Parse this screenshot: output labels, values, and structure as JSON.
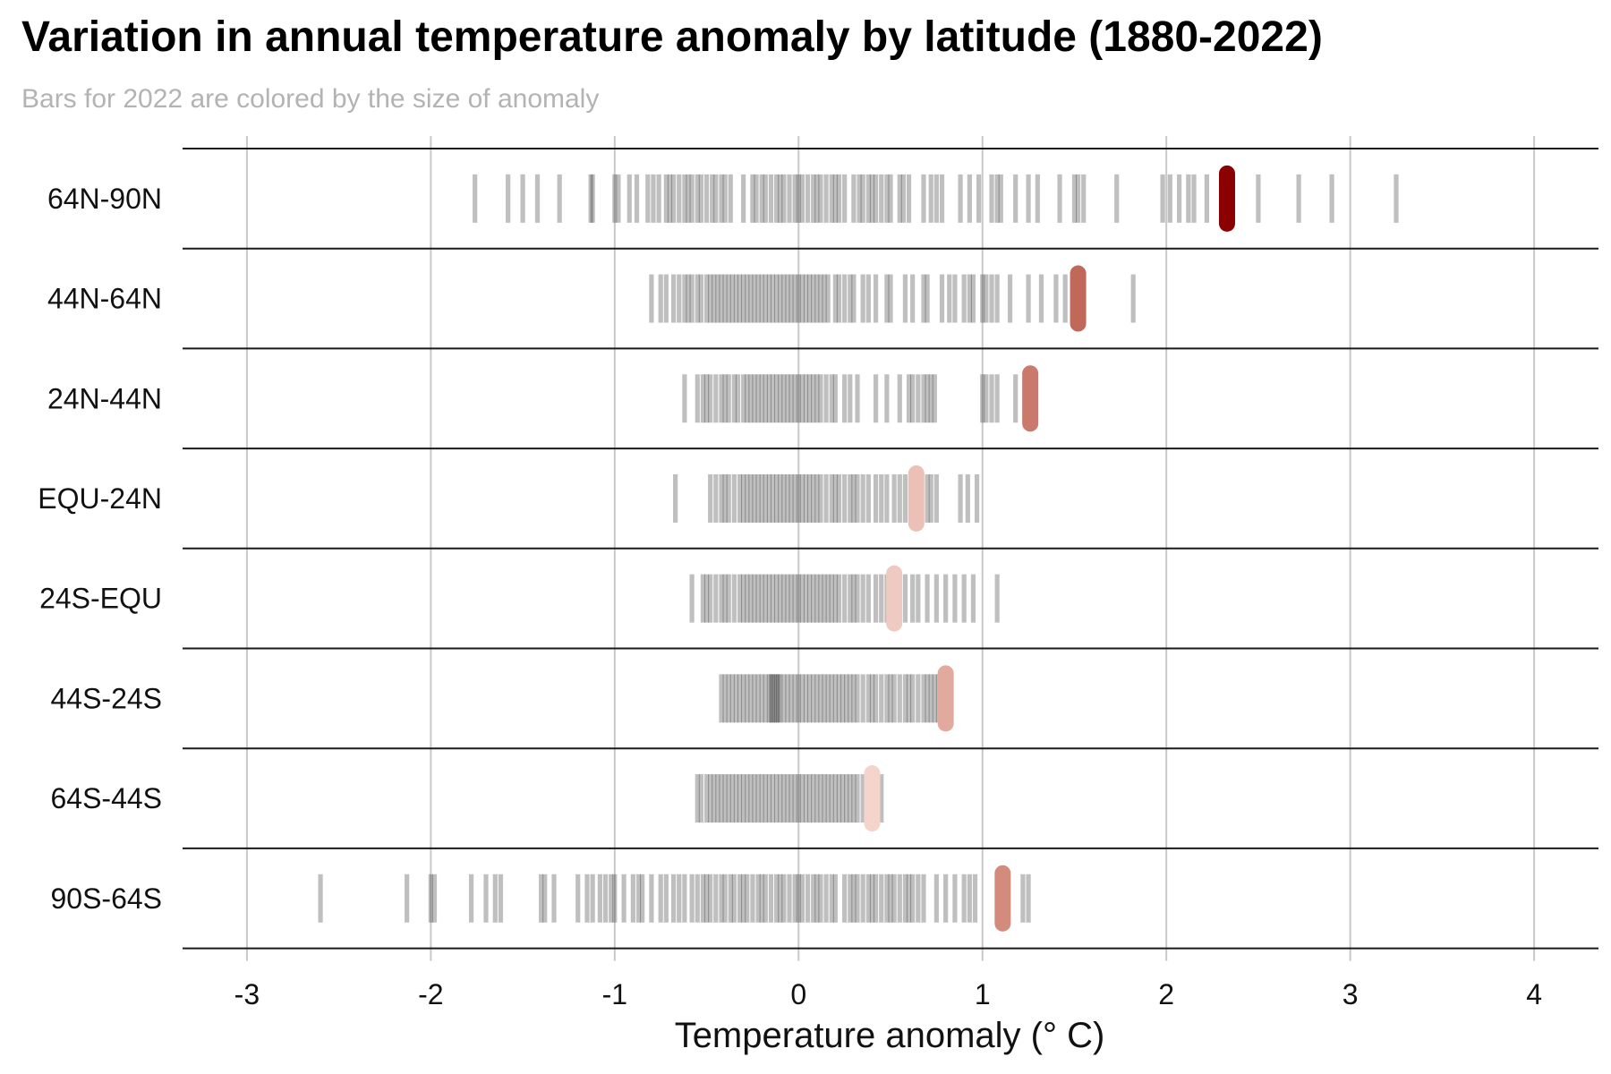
{
  "chart_data": {
    "type": "strip",
    "title": "Variation in annual temperature anomaly by latitude (1880-2022)",
    "subtitle": "Bars for 2022 are colored by the size of anomaly",
    "xlabel": "Temperature anomaly (° C)",
    "xlim": [
      -3.35,
      4.35
    ],
    "x_ticks": [
      -3,
      -2,
      -1,
      0,
      1,
      2,
      3,
      4
    ],
    "grid": "vertical",
    "categories": [
      "64N-90N",
      "44N-64N",
      "24N-44N",
      "EQU-24N",
      "24S-EQU",
      "44S-24S",
      "64S-44S",
      "90S-64S"
    ],
    "bar_colors": {
      "history": "#000000",
      "history_opacity": 0.25,
      "anomaly_high": "#8b0000",
      "anomaly_low": "#f5d4cc"
    },
    "series": [
      {
        "latitude": "64N-90N",
        "highlight_2022": 2.33,
        "highlight_color": "#8b0000",
        "values": [
          -1.76,
          -1.58,
          -1.5,
          -1.42,
          -1.3,
          -1.13,
          -1.12,
          -1.0,
          -0.98,
          -0.92,
          -0.88,
          -0.82,
          -0.79,
          -0.76,
          -0.72,
          -0.7,
          -0.68,
          -0.65,
          -0.62,
          -0.6,
          -0.58,
          -0.55,
          -0.53,
          -0.5,
          -0.47,
          -0.45,
          -0.42,
          -0.4,
          -0.37,
          -0.3,
          -0.25,
          -0.23,
          -0.2,
          -0.18,
          -0.15,
          -0.12,
          -0.1,
          -0.08,
          -0.05,
          -0.02,
          0.0,
          0.02,
          0.05,
          0.08,
          0.1,
          0.12,
          0.15,
          0.18,
          0.2,
          0.22,
          0.25,
          0.3,
          0.33,
          0.35,
          0.38,
          0.4,
          0.42,
          0.45,
          0.48,
          0.5,
          0.55,
          0.57,
          0.6,
          0.68,
          0.72,
          0.75,
          0.78,
          0.88,
          0.93,
          0.98,
          1.05,
          1.08,
          1.1,
          1.18,
          1.25,
          1.3,
          1.42,
          1.5,
          1.52,
          1.55,
          1.73,
          1.98,
          2.02,
          2.07,
          2.12,
          2.15,
          2.22,
          2.5,
          2.72,
          2.9,
          3.25
        ]
      },
      {
        "latitude": "44N-64N",
        "highlight_2022": 1.52,
        "highlight_color": "#c0685a",
        "values": [
          -0.8,
          -0.75,
          -0.72,
          -0.68,
          -0.65,
          -0.62,
          -0.6,
          -0.58,
          -0.55,
          -0.53,
          -0.5,
          -0.48,
          -0.46,
          -0.44,
          -0.42,
          -0.4,
          -0.38,
          -0.36,
          -0.34,
          -0.32,
          -0.3,
          -0.28,
          -0.26,
          -0.24,
          -0.22,
          -0.2,
          -0.18,
          -0.16,
          -0.14,
          -0.12,
          -0.1,
          -0.08,
          -0.06,
          -0.04,
          -0.02,
          0.0,
          0.02,
          0.04,
          0.06,
          0.08,
          0.1,
          0.12,
          0.14,
          0.16,
          0.2,
          0.22,
          0.25,
          0.28,
          0.3,
          0.35,
          0.38,
          0.42,
          0.48,
          0.5,
          0.58,
          0.62,
          0.68,
          0.7,
          0.78,
          0.82,
          0.85,
          0.9,
          0.93,
          0.95,
          1.0,
          1.02,
          1.05,
          1.08,
          1.15,
          1.25,
          1.32,
          1.4,
          1.45,
          1.82
        ]
      },
      {
        "latitude": "24N-44N",
        "highlight_2022": 1.26,
        "highlight_color": "#c97a6d",
        "values": [
          -0.62,
          -0.55,
          -0.52,
          -0.5,
          -0.48,
          -0.45,
          -0.42,
          -0.4,
          -0.38,
          -0.35,
          -0.33,
          -0.3,
          -0.28,
          -0.26,
          -0.24,
          -0.22,
          -0.2,
          -0.18,
          -0.16,
          -0.14,
          -0.12,
          -0.1,
          -0.08,
          -0.06,
          -0.04,
          -0.02,
          0.0,
          0.02,
          0.04,
          0.06,
          0.08,
          0.1,
          0.12,
          0.15,
          0.18,
          0.2,
          0.25,
          0.28,
          0.32,
          0.42,
          0.48,
          0.55,
          0.6,
          0.62,
          0.65,
          0.68,
          0.7,
          0.72,
          0.74,
          1.0,
          1.02,
          1.05,
          1.08,
          1.18
        ]
      },
      {
        "latitude": "EQU-24N",
        "highlight_2022": 0.64,
        "highlight_color": "#ecc0b6",
        "values": [
          -0.67,
          -0.48,
          -0.45,
          -0.42,
          -0.4,
          -0.38,
          -0.35,
          -0.32,
          -0.3,
          -0.28,
          -0.26,
          -0.24,
          -0.22,
          -0.2,
          -0.18,
          -0.16,
          -0.14,
          -0.12,
          -0.1,
          -0.08,
          -0.06,
          -0.04,
          -0.02,
          0.0,
          0.02,
          0.04,
          0.06,
          0.08,
          0.1,
          0.12,
          0.15,
          0.18,
          0.2,
          0.22,
          0.25,
          0.28,
          0.3,
          0.32,
          0.35,
          0.38,
          0.42,
          0.45,
          0.48,
          0.52,
          0.55,
          0.58,
          0.7,
          0.72,
          0.75,
          0.88,
          0.92,
          0.97
        ]
      },
      {
        "latitude": "24S-EQU",
        "highlight_2022": 0.52,
        "highlight_color": "#efcac2",
        "values": [
          -0.58,
          -0.52,
          -0.5,
          -0.48,
          -0.45,
          -0.42,
          -0.4,
          -0.38,
          -0.35,
          -0.32,
          -0.3,
          -0.28,
          -0.26,
          -0.24,
          -0.22,
          -0.2,
          -0.18,
          -0.16,
          -0.14,
          -0.12,
          -0.1,
          -0.08,
          -0.06,
          -0.04,
          -0.02,
          0.0,
          0.02,
          0.04,
          0.06,
          0.08,
          0.1,
          0.12,
          0.14,
          0.16,
          0.18,
          0.2,
          0.22,
          0.25,
          0.28,
          0.3,
          0.32,
          0.35,
          0.38,
          0.42,
          0.45,
          0.48,
          0.55,
          0.58,
          0.62,
          0.65,
          0.7,
          0.75,
          0.8,
          0.85,
          0.9,
          0.95,
          1.08
        ]
      },
      {
        "latitude": "44S-24S",
        "highlight_2022": 0.8,
        "highlight_color": "#e2aa9e",
        "values": [
          -0.42,
          -0.4,
          -0.38,
          -0.36,
          -0.34,
          -0.32,
          -0.3,
          -0.28,
          -0.26,
          -0.24,
          -0.22,
          -0.2,
          -0.18,
          -0.16,
          -0.15,
          -0.14,
          -0.13,
          -0.12,
          -0.11,
          -0.1,
          -0.08,
          -0.06,
          -0.04,
          -0.02,
          0.0,
          0.02,
          0.04,
          0.06,
          0.08,
          0.1,
          0.12,
          0.14,
          0.16,
          0.18,
          0.2,
          0.22,
          0.24,
          0.26,
          0.28,
          0.3,
          0.32,
          0.35,
          0.38,
          0.4,
          0.42,
          0.45,
          0.48,
          0.5,
          0.52,
          0.55,
          0.58,
          0.6,
          0.62,
          0.65,
          0.68,
          0.7,
          0.72,
          0.74,
          0.76
        ]
      },
      {
        "latitude": "64S-44S",
        "highlight_2022": 0.4,
        "highlight_color": "#f5d4cc",
        "values": [
          -0.55,
          -0.53,
          -0.5,
          -0.48,
          -0.46,
          -0.44,
          -0.42,
          -0.4,
          -0.38,
          -0.36,
          -0.34,
          -0.32,
          -0.3,
          -0.28,
          -0.26,
          -0.24,
          -0.22,
          -0.2,
          -0.18,
          -0.16,
          -0.14,
          -0.12,
          -0.1,
          -0.08,
          -0.06,
          -0.04,
          -0.02,
          0.0,
          0.02,
          0.04,
          0.06,
          0.08,
          0.1,
          0.12,
          0.14,
          0.16,
          0.18,
          0.2,
          0.22,
          0.24,
          0.26,
          0.28,
          0.3,
          0.32,
          0.35,
          0.38,
          0.42,
          0.45
        ]
      },
      {
        "latitude": "90S-64S",
        "highlight_2022": 1.11,
        "highlight_color": "#d38b7e",
        "values": [
          -2.6,
          -2.13,
          -2.0,
          -1.98,
          -1.78,
          -1.7,
          -1.65,
          -1.62,
          -1.4,
          -1.38,
          -1.33,
          -1.2,
          -1.15,
          -1.12,
          -1.08,
          -1.05,
          -1.02,
          -1.0,
          -0.95,
          -0.9,
          -0.87,
          -0.85,
          -0.8,
          -0.75,
          -0.72,
          -0.68,
          -0.65,
          -0.62,
          -0.58,
          -0.55,
          -0.52,
          -0.5,
          -0.48,
          -0.45,
          -0.42,
          -0.4,
          -0.37,
          -0.35,
          -0.32,
          -0.3,
          -0.28,
          -0.25,
          -0.22,
          -0.2,
          -0.18,
          -0.15,
          -0.12,
          -0.1,
          -0.08,
          -0.05,
          -0.02,
          0.0,
          0.02,
          0.05,
          0.08,
          0.1,
          0.12,
          0.15,
          0.18,
          0.2,
          0.25,
          0.28,
          0.3,
          0.32,
          0.35,
          0.38,
          0.4,
          0.42,
          0.45,
          0.48,
          0.5,
          0.52,
          0.55,
          0.58,
          0.6,
          0.62,
          0.65,
          0.68,
          0.75,
          0.8,
          0.85,
          0.9,
          0.93,
          0.96,
          1.22,
          1.25
        ]
      }
    ]
  }
}
